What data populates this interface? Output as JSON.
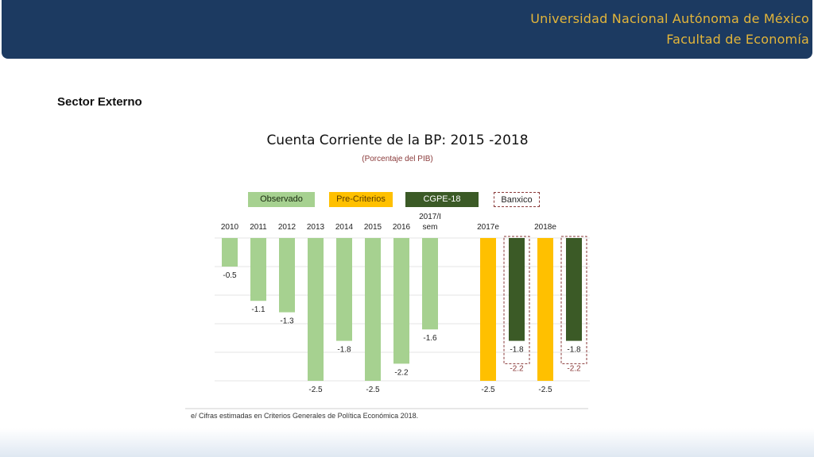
{
  "header": {
    "university": "Universidad Nacional Autónoma de México",
    "faculty": "Facultad de Economía"
  },
  "section_title": "Sector Externo",
  "footnote": "e/ Cifras estimadas en Criterios Generales de Política Económica  2018.",
  "colors": {
    "header_bg": "#1c3a61",
    "header_text": "#e3b53a",
    "observado": "#a6d190",
    "pre_criterios": "#ffc000",
    "cgpe": "#3b5a26",
    "banxico_border": "#8a3a3a"
  },
  "chart_data": {
    "type": "bar",
    "title": "Cuenta Corriente de la BP: 2015 -2018",
    "subtitle": "(Porcentaje del PIB)",
    "legend": [
      "Observado",
      "Pre-Criterios",
      "CGPE-18",
      "Banxico"
    ],
    "categories": [
      "2010",
      "2011",
      "2012",
      "2013",
      "2014",
      "2015",
      "2016",
      "2017/I sem",
      "2017e",
      "2018e"
    ],
    "series": [
      {
        "name": "Observado",
        "values": [
          {
            "x": "2010",
            "y": -0.5
          },
          {
            "x": "2011",
            "y": -1.1
          },
          {
            "x": "2012",
            "y": -1.3
          },
          {
            "x": "2013",
            "y": -2.5
          },
          {
            "x": "2014",
            "y": -1.8
          },
          {
            "x": "2015",
            "y": -2.5
          },
          {
            "x": "2016",
            "y": -2.2
          },
          {
            "x": "2017/I sem",
            "y": -1.6
          }
        ]
      },
      {
        "name": "Pre-Criterios",
        "values": [
          {
            "x": "2017e",
            "y": -2.5
          },
          {
            "x": "2018e",
            "y": -2.5
          }
        ]
      },
      {
        "name": "CGPE-18",
        "values": [
          {
            "x": "2017e",
            "y": -1.8
          },
          {
            "x": "2018e",
            "y": -1.8
          }
        ]
      },
      {
        "name": "Banxico",
        "values": [
          {
            "x": "2017e",
            "y": -2.2
          },
          {
            "x": "2018e",
            "y": -2.2
          }
        ]
      }
    ],
    "ylim": [
      -2.5,
      0
    ],
    "grid": true
  }
}
